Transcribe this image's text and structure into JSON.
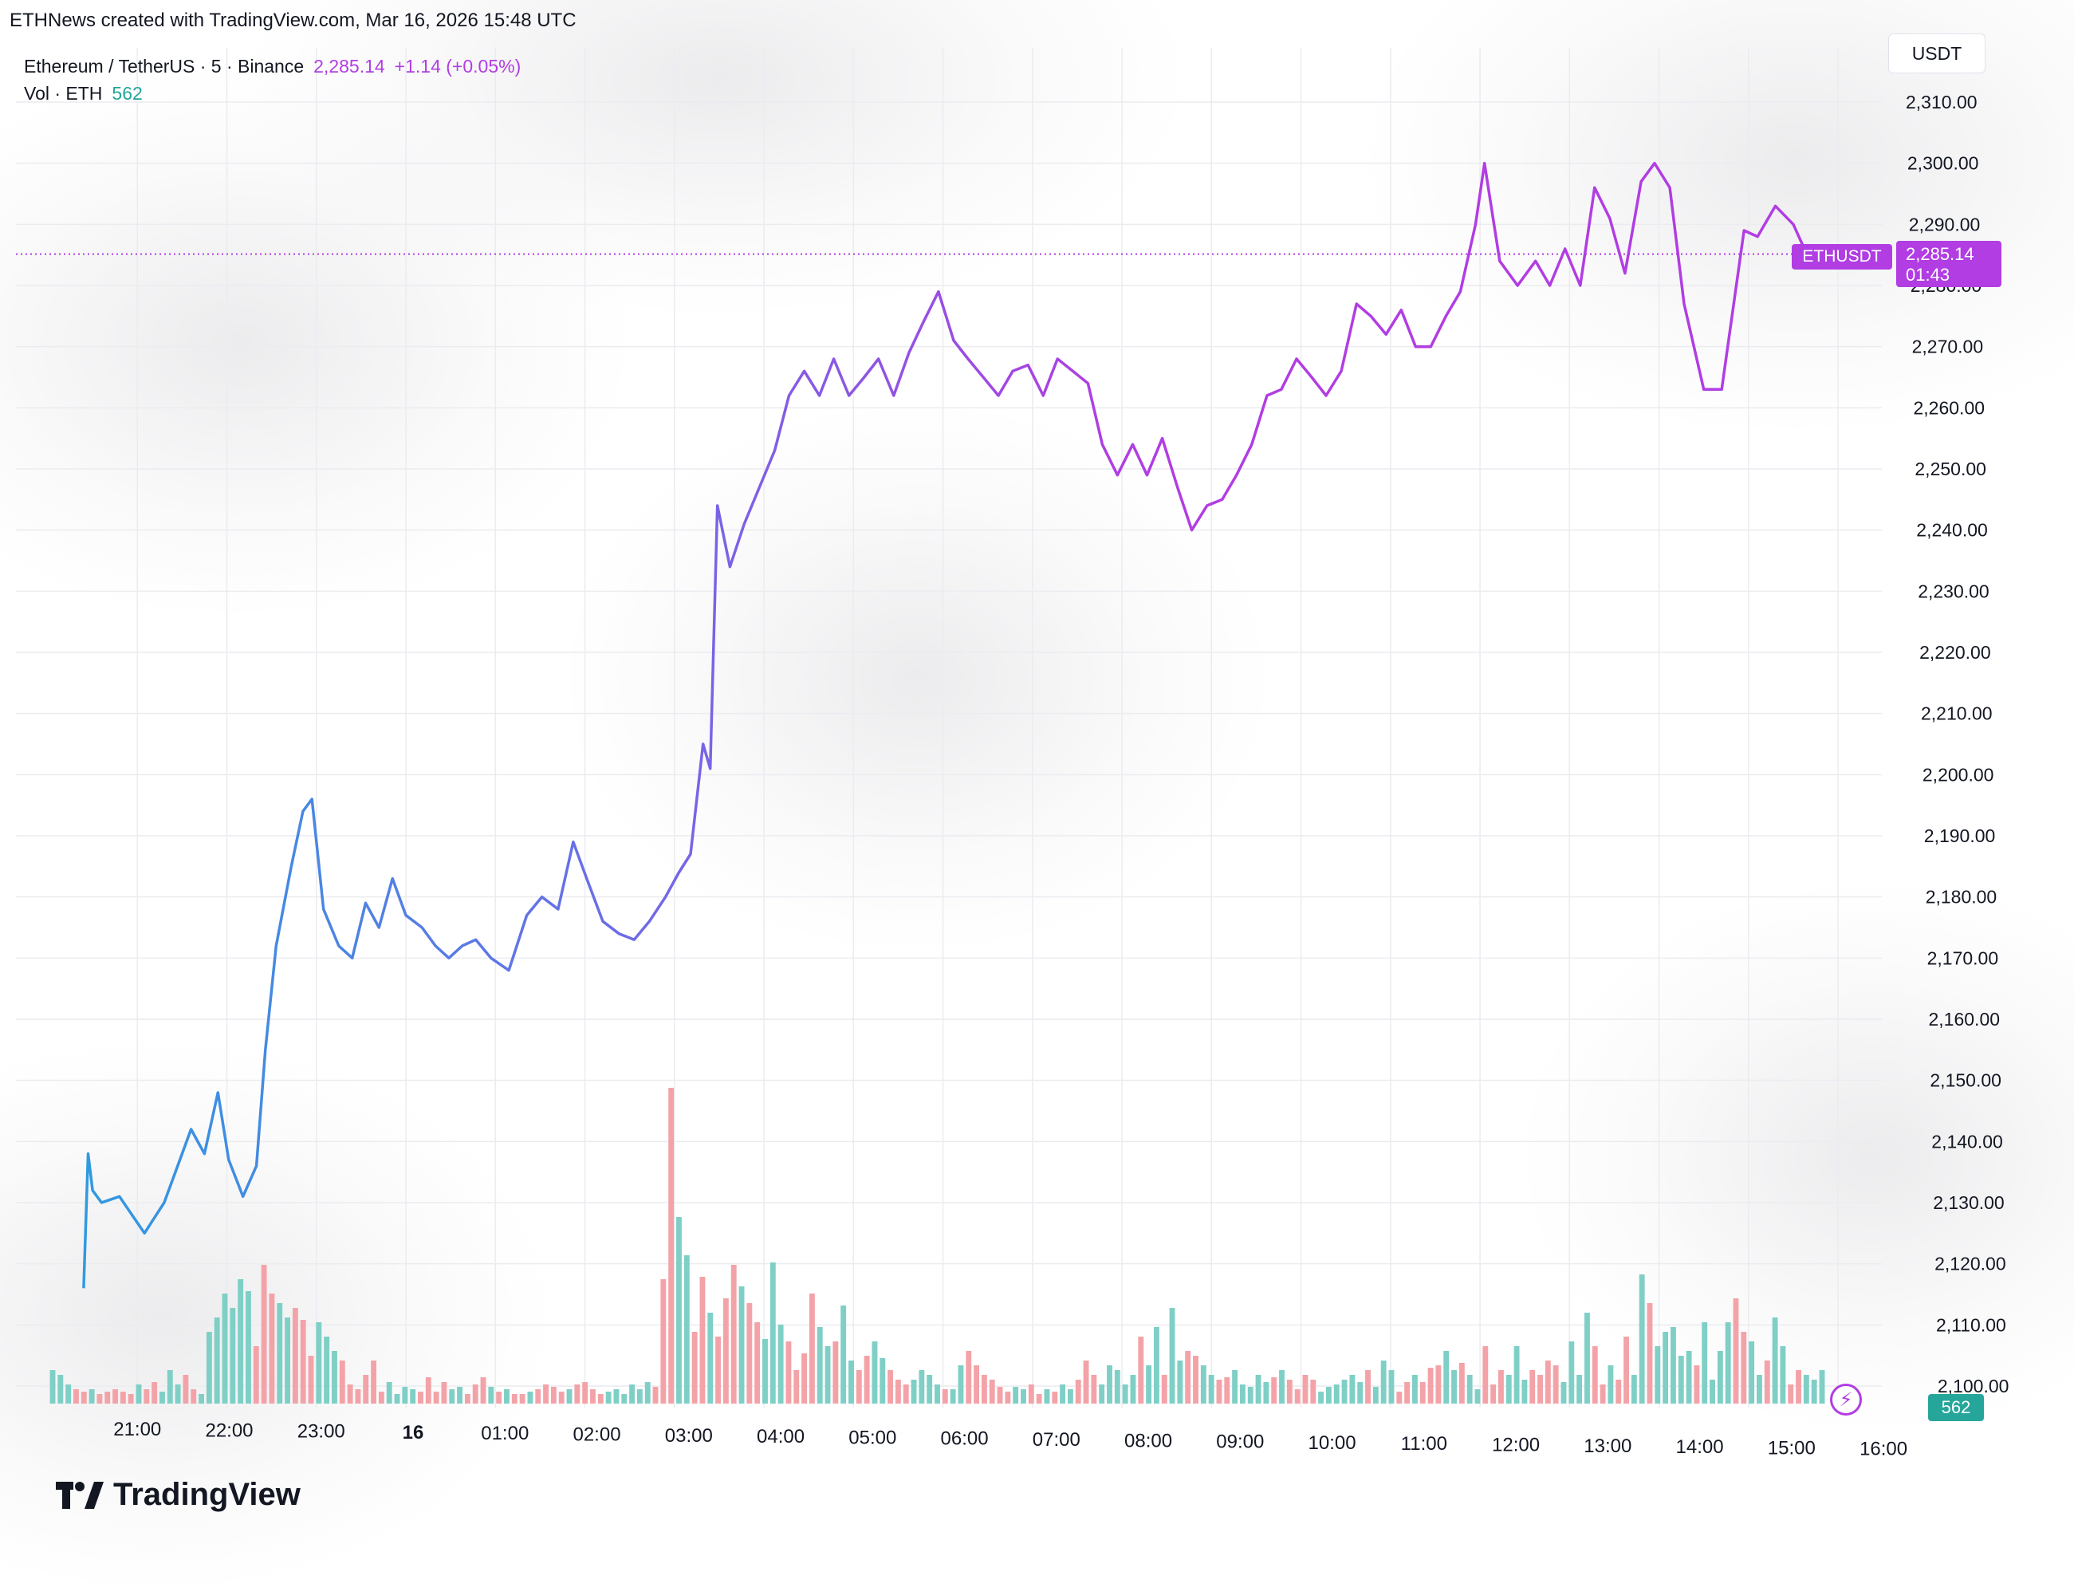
{
  "caption": "ETHNews created with TradingView.com, Mar 16, 2026 15:48 UTC",
  "legend": {
    "symbol": "Ethereum / TetherUS · 5 · Binance",
    "price": "2,285.14",
    "change": "+1.14 (+0.05%)",
    "volume_label": "Vol · ETH",
    "volume_value": "562"
  },
  "price_axis_unit": "USDT",
  "last_price_tag": {
    "symbol": "ETHUSDT",
    "price": "2,285.14",
    "countdown": "01:43"
  },
  "volume_tag": "562",
  "branding": "TradingView",
  "colors": {
    "line_start": "#2f9ae0",
    "line_mid": "#6a6ee6",
    "line_end": "#b13de3",
    "volume_up": "#7fcfc6",
    "volume_down": "#f3a3a8",
    "accent": "#b13de3"
  },
  "icons": {
    "lightning": "lightning-bolt-icon",
    "logo": "tradingview-logo-icon"
  },
  "chart_data": {
    "type": "line",
    "title": "Ethereum / TetherUS · 5 · Binance",
    "xlabel": "",
    "ylabel": "USDT",
    "ylim": [
      2095,
      2315
    ],
    "y_ticks": [
      "2,310.00",
      "2,300.00",
      "2,290.00",
      "2,280.00",
      "2,270.00",
      "2,260.00",
      "2,250.00",
      "2,240.00",
      "2,230.00",
      "2,220.00",
      "2,210.00",
      "2,200.00",
      "2,190.00",
      "2,180.00",
      "2,170.00",
      "2,160.00",
      "2,150.00",
      "2,140.00",
      "2,130.00",
      "2,120.00",
      "2,110.00",
      "2,100.00"
    ],
    "x_ticks": [
      "21:00",
      "22:00",
      "23:00",
      "16",
      "01:00",
      "02:00",
      "03:00",
      "04:00",
      "05:00",
      "06:00",
      "07:00",
      "08:00",
      "09:00",
      "10:00",
      "11:00",
      "12:00",
      "13:00",
      "14:00",
      "15:00",
      "16:00"
    ],
    "x_range_hours": [
      -0.6,
      19.0
    ],
    "grid": true,
    "last_price_line": 2285.14,
    "series": [
      {
        "values": [
          2116,
          2138,
          2132,
          2130,
          2131,
          2125,
          2130,
          2136,
          2142,
          2138,
          2148,
          2137,
          2131,
          2136,
          2155,
          2172,
          2185,
          2194,
          2196,
          2178,
          2172,
          2170,
          2179,
          2175,
          2183,
          2177,
          2175,
          2172,
          2170,
          2172,
          2173,
          2170,
          2168,
          2177,
          2180,
          2178,
          2189,
          2183,
          2176,
          2174,
          2173,
          2176,
          2180,
          2184,
          2187,
          2205,
          2201,
          2244,
          2234,
          2241,
          2247,
          2253,
          2262,
          2266,
          2262,
          2268,
          2262,
          2265,
          2268,
          2262,
          2269,
          2274,
          2279,
          2271,
          2268,
          2265,
          2262,
          2266,
          2267,
          2262,
          2268,
          2266,
          2264,
          2254,
          2249,
          2254,
          2249,
          2255,
          2247,
          2240,
          2244,
          2245,
          2249,
          2254,
          2262,
          2263,
          2268,
          2265,
          2262,
          2266,
          2277,
          2275,
          2272,
          2276,
          2270,
          2270,
          2275,
          2279,
          2290,
          2300,
          2284,
          2280,
          2284,
          2280,
          2286,
          2280,
          2296,
          2291,
          2282,
          2297,
          2300,
          2296,
          2277,
          2263,
          2263,
          2289,
          2288,
          2293,
          2290,
          2285.14
        ],
        "x_hours": [
          -0.6,
          -0.55,
          -0.5,
          -0.4,
          -0.2,
          0.08,
          0.3,
          0.45,
          0.6,
          0.75,
          0.9,
          1.02,
          1.18,
          1.33,
          1.43,
          1.55,
          1.72,
          1.85,
          1.95,
          2.08,
          2.25,
          2.4,
          2.55,
          2.7,
          2.85,
          3.0,
          3.18,
          3.33,
          3.48,
          3.63,
          3.78,
          3.95,
          4.15,
          4.35,
          4.52,
          4.7,
          4.87,
          5.02,
          5.2,
          5.38,
          5.55,
          5.72,
          5.9,
          6.05,
          6.18,
          6.32,
          6.4,
          6.48,
          6.62,
          6.78,
          6.95,
          7.12,
          7.28,
          7.45,
          7.62,
          7.78,
          7.95,
          8.12,
          8.28,
          8.45,
          8.62,
          8.78,
          8.95,
          9.12,
          9.28,
          9.45,
          9.62,
          9.78,
          9.95,
          10.12,
          10.28,
          10.45,
          10.62,
          10.78,
          10.95,
          11.12,
          11.28,
          11.45,
          11.62,
          11.78,
          11.95,
          12.12,
          12.28,
          12.45,
          12.62,
          12.78,
          12.95,
          13.12,
          13.28,
          13.45,
          13.62,
          13.78,
          13.95,
          14.12,
          14.28,
          14.45,
          14.62,
          14.78,
          14.95,
          15.05,
          15.22,
          15.42,
          15.62,
          15.78,
          15.95,
          16.12,
          16.28,
          16.45,
          16.62,
          16.8,
          16.95,
          17.12,
          17.28,
          17.5,
          17.7,
          17.95,
          18.1,
          18.3,
          18.5,
          18.65
        ]
      }
    ],
    "volume": {
      "values": [
        14,
        12,
        8,
        6,
        5,
        6,
        4,
        5,
        6,
        5,
        4,
        8,
        6,
        9,
        5,
        14,
        8,
        12,
        6,
        4,
        30,
        36,
        46,
        40,
        52,
        47,
        24,
        58,
        46,
        42,
        36,
        40,
        35,
        20,
        34,
        28,
        22,
        18,
        8,
        6,
        12,
        18,
        5,
        9,
        4,
        7,
        6,
        5,
        11,
        5,
        9,
        6,
        7,
        4,
        8,
        11,
        7,
        5,
        6,
        4,
        4,
        5,
        6,
        8,
        7,
        5,
        6,
        8,
        9,
        6,
        4,
        5,
        6,
        4,
        8,
        6,
        9,
        7,
        52,
        132,
        78,
        62,
        30,
        53,
        38,
        28,
        44,
        58,
        49,
        42,
        34,
        27,
        59,
        33,
        26,
        14,
        21,
        46,
        32,
        24,
        26,
        41,
        18,
        14,
        20,
        26,
        19,
        14,
        10,
        8,
        10,
        14,
        12,
        8,
        6,
        6,
        16,
        22,
        16,
        12,
        10,
        7,
        5,
        7,
        6,
        8,
        4,
        6,
        5,
        8,
        6,
        10,
        18,
        12,
        8,
        16,
        14,
        8,
        12,
        28,
        16,
        32,
        12,
        40,
        18,
        22,
        20,
        16,
        12,
        10,
        11,
        14,
        8,
        7,
        12,
        9,
        11,
        14,
        10,
        6,
        12,
        10,
        5,
        7,
        8,
        10,
        12,
        9,
        14,
        7,
        18,
        14,
        5,
        9,
        12,
        9,
        15,
        16,
        22,
        14,
        17,
        12,
        6,
        24,
        8,
        14,
        12,
        24,
        10,
        14,
        12,
        18,
        16,
        9,
        26,
        12,
        38,
        24,
        8,
        16,
        10,
        28,
        12,
        54,
        42,
        24,
        30,
        32,
        20,
        22,
        16,
        34,
        10,
        22,
        34,
        44,
        30,
        26,
        12,
        18,
        36,
        24,
        8,
        14,
        12,
        10,
        14
      ],
      "directions": "uuuddudddddudduuudduuuuuuuddduuddduuudddddduuuudddduudddududduddddudddduuuuuuddduuddudddudduuudddduuduudduuddduuuuduudddddduudduduuddduuuuuduuduudduudduuuuududddduuuuuuduuudduddduuduuddduuudddduuuuddudduuduuuuuduuuudduuduudduuuuuddu"
    }
  }
}
